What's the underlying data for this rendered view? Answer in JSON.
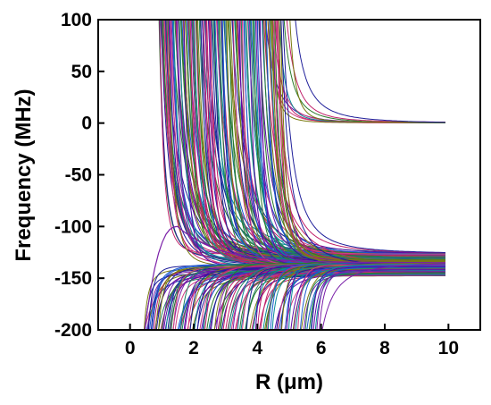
{
  "chart_data": {
    "type": "line",
    "xlabel": "R (μm)",
    "ylabel": "Frequency (MHz)",
    "xlim": [
      -1,
      11
    ],
    "ylim": [
      -200,
      100
    ],
    "x_ticks": [
      0,
      2,
      4,
      6,
      8,
      10
    ],
    "x_tick_labels": [
      "0",
      "2",
      "4",
      "6",
      "8",
      "10"
    ],
    "y_ticks": [
      100,
      50,
      0,
      -50,
      -100,
      -150,
      -200
    ],
    "y_tick_labels": [
      "100",
      "50",
      "0",
      "-50",
      "-100",
      "-150",
      "-200"
    ],
    "x_range": [
      0.4,
      9.9
    ],
    "grid": false,
    "legend": "none",
    "colors": [
      "#1f1f9a",
      "#7a1fa8",
      "#c0206a",
      "#2a7a2a",
      "#0a8a9a",
      "#7a7a10",
      "#5a0aa8",
      "#1a5ad0",
      "#d04080",
      "#208060"
    ],
    "series_groups": [
      {
        "description_in_image": "upper branch decaying toward 0 MHz",
        "asymptote": 0,
        "count": 10,
        "enter_top_x_range": [
          4.2,
          5.2
        ],
        "end_values_at_x10": [
          0,
          1
        ]
      },
      {
        "description_in_image": "middle branch decaying from above toward about -130 MHz",
        "asymptote": -130,
        "count": 140,
        "enter_top_x_range": [
          0.9,
          4.8
        ],
        "end_values_at_x10": [
          -125,
          -140
        ]
      },
      {
        "description_in_image": "lower branch rising from below toward about -140 MHz",
        "asymptote": -140,
        "count": 120,
        "enter_bottom_x_range": [
          0.4,
          6.0
        ],
        "end_values_at_x10": [
          -135,
          -148
        ]
      },
      {
        "description_in_image": "curve with local maximum near R=1.5, -100 MHz",
        "peak": [
          1.5,
          -100
        ],
        "count": 1
      }
    ]
  }
}
